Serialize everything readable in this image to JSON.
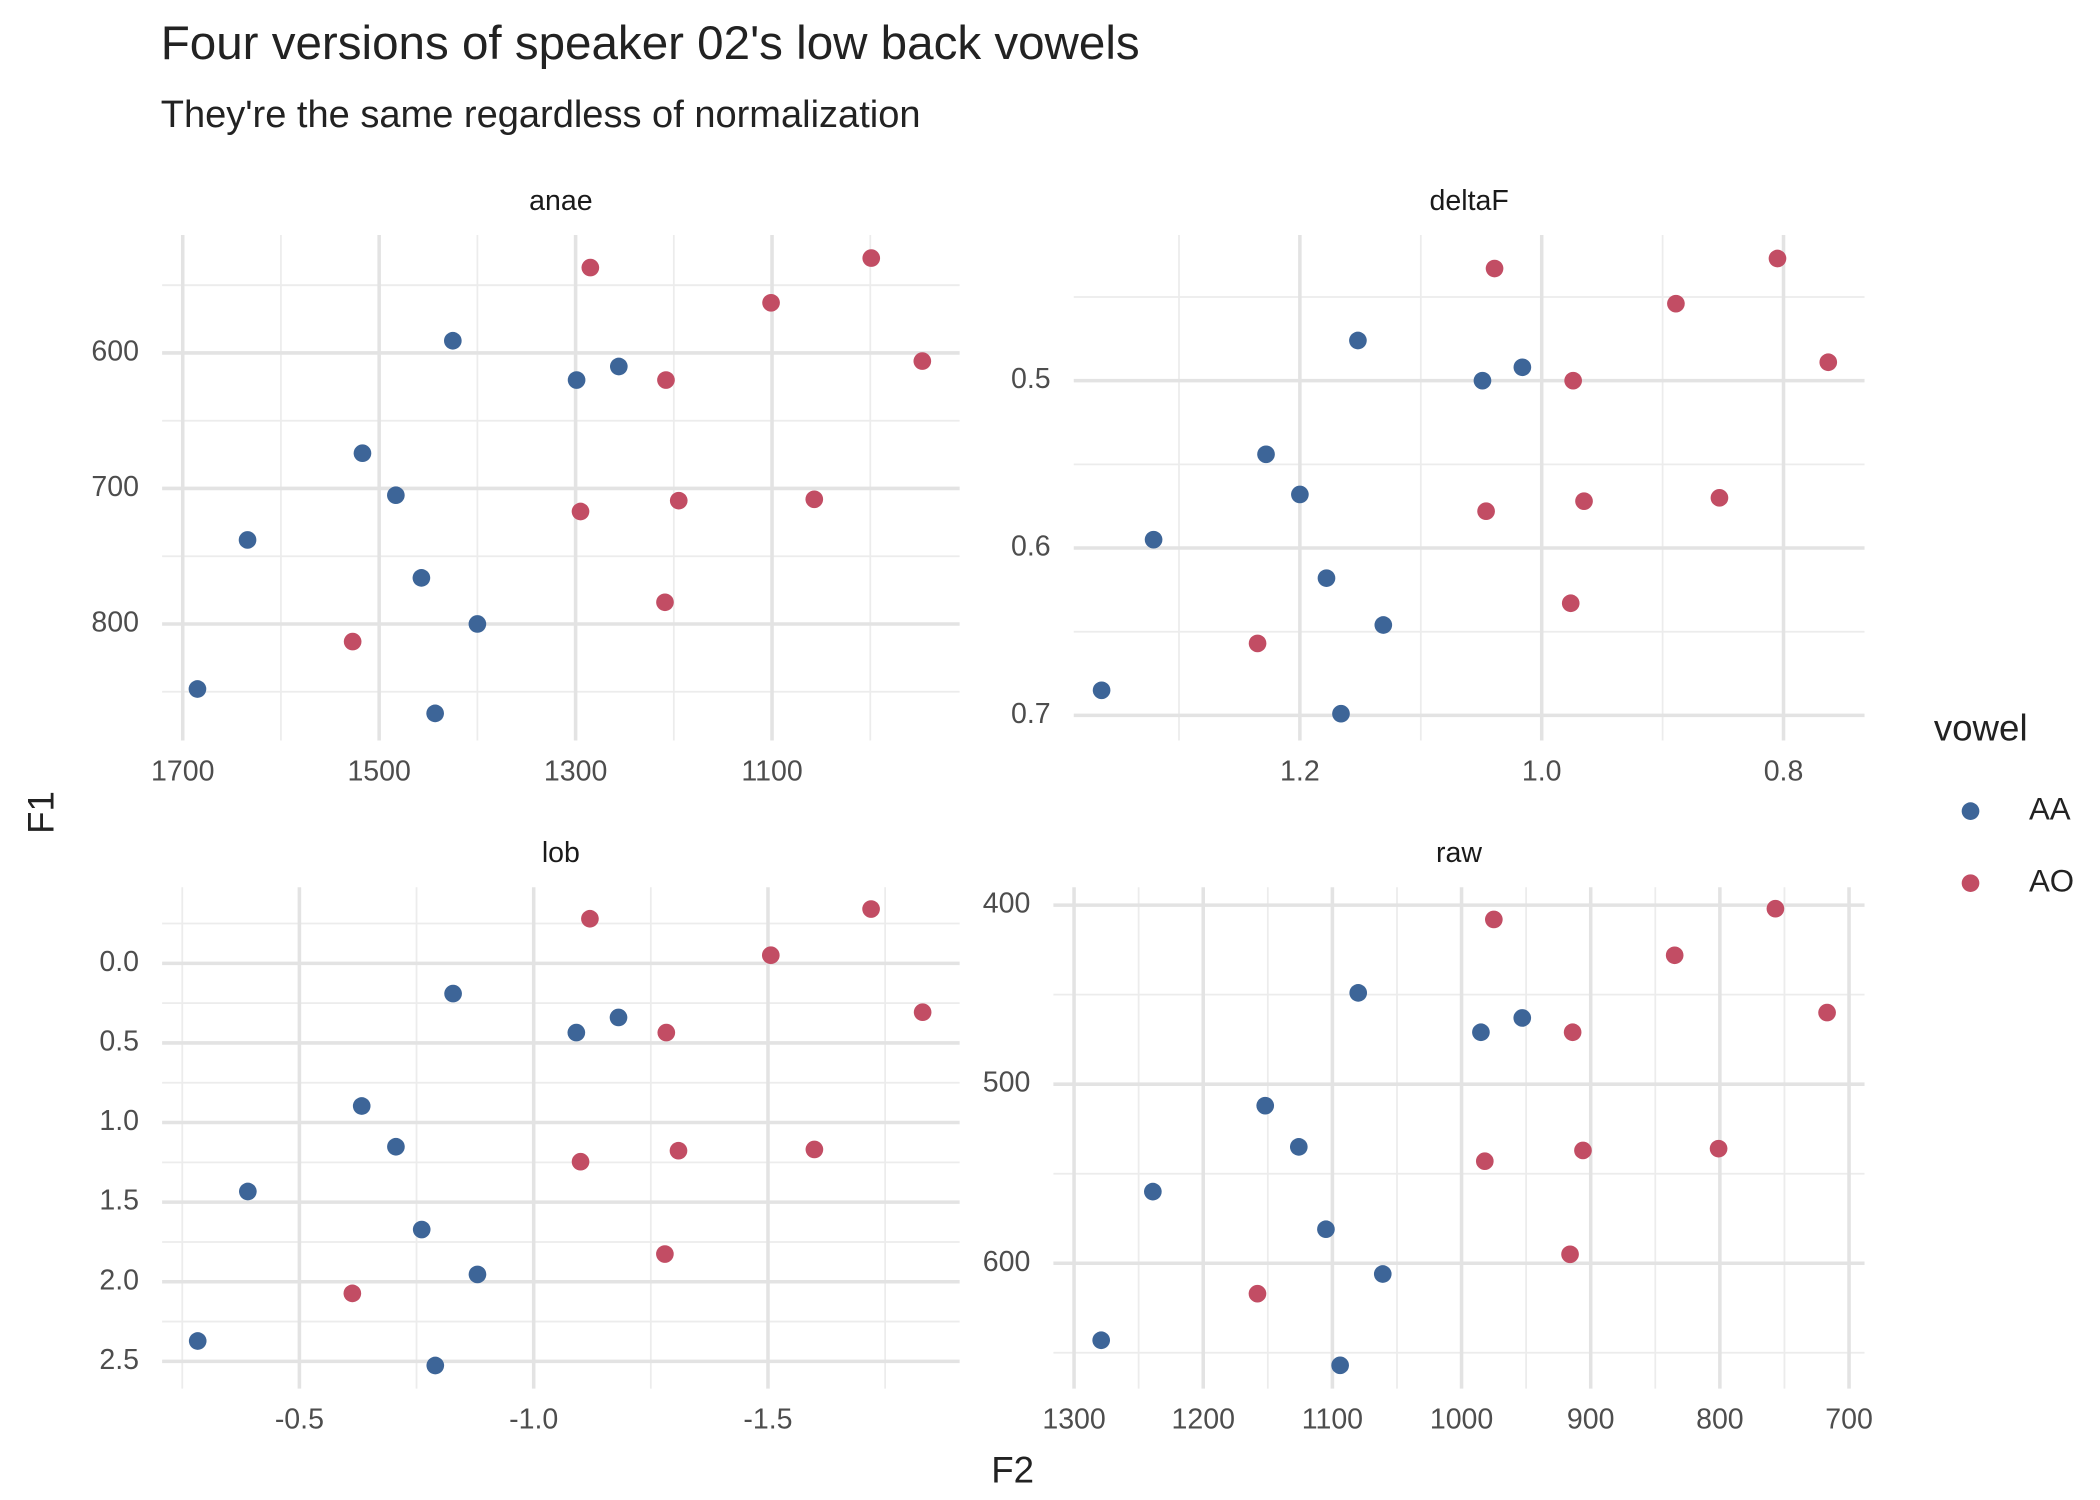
{
  "title": "Four versions of speaker 02's low back vowels",
  "subtitle": "They're the same regardless of normalization",
  "x_label": "F2",
  "y_label": "F1",
  "legend_title": "vowel",
  "chart_data": [
    {
      "type": "scatter",
      "title": "anae",
      "grid": true,
      "xlim": [
        1721,
        909
      ],
      "ylim": [
        886,
        513
      ],
      "xticks": [
        1700,
        1500,
        1300,
        1100
      ],
      "yticks": [
        600,
        700,
        800
      ],
      "series": [
        {
          "name": "AA",
          "color": "#3d6598",
          "x": [
            1425,
            1299,
            1256,
            1517,
            1483,
            1634,
            1457,
            1400,
            1685,
            1443
          ],
          "values": [
            591,
            620,
            610,
            674,
            705,
            738,
            766,
            800,
            848,
            866
          ]
        },
        {
          "name": "AO",
          "color": "#c24d64",
          "x": [
            1285,
            999,
            1101,
            947,
            1208,
            1295,
            1195,
            1057,
            1209,
            1527
          ],
          "values": [
            537,
            530,
            563,
            606,
            620,
            717,
            709,
            708,
            784,
            813
          ]
        }
      ]
    },
    {
      "type": "scatter",
      "title": "deltaF",
      "grid": true,
      "xlim": [
        1.387,
        0.733
      ],
      "ylim": [
        0.715,
        0.413
      ],
      "xticks": [
        1.2,
        {
          "value": 1,
          "label": "1.0"
        },
        0.8
      ],
      "yticks": [
        0.5,
        0.6,
        0.7
      ],
      "series": [
        {
          "color": "#3d6598",
          "x": [
            1.152,
            1.049,
            1.016,
            1.228,
            1.2,
            1.321,
            1.178,
            1.131,
            1.364,
            1.166
          ],
          "values": [
            0.476,
            0.5,
            0.492,
            0.544,
            0.568,
            0.595,
            0.618,
            0.646,
            0.685,
            0.699
          ]
        },
        {
          "color": "#c24d64",
          "x": [
            1.039,
            0.805,
            0.889,
            0.763,
            0.974,
            1.046,
            0.965,
            0.853,
            0.976,
            1.235
          ],
          "values": [
            0.433,
            0.427,
            0.454,
            0.489,
            0.5,
            0.578,
            0.572,
            0.57,
            0.633,
            0.657
          ]
        }
      ]
    },
    {
      "type": "scatter",
      "title": "lob",
      "grid": true,
      "xlim": [
        -0.207,
        -1.909
      ],
      "ylim": [
        2.671,
        -0.478
      ],
      "xticks": [
        -0.5,
        {
          "value": -1,
          "label": "-1.0"
        },
        -1.5
      ],
      "yticks": [
        {
          "value": 0,
          "label": "0.0"
        },
        0.5,
        {
          "value": 1,
          "label": "1.0"
        },
        1.5,
        {
          "value": 2,
          "label": "2.0"
        },
        2.5
      ],
      "series": [
        {
          "color": "#3d6598",
          "x": [
            -0.828,
            -1.091,
            -1.181,
            -0.633,
            -0.706,
            -0.39,
            -0.761,
            -0.88,
            -0.283,
            -0.79
          ],
          "values": [
            0.19,
            0.435,
            0.34,
            0.896,
            1.152,
            1.433,
            1.672,
            1.954,
            2.372,
            2.526
          ]
        },
        {
          "color": "#c24d64",
          "x": [
            -1.12,
            -1.72,
            -1.506,
            -1.83,
            -1.283,
            -1.1,
            -1.309,
            -1.599,
            -1.28,
            -0.613
          ],
          "values": [
            -0.28,
            -0.341,
            -0.051,
            0.307,
            0.435,
            1.246,
            1.177,
            1.169,
            1.826,
            2.073
          ]
        }
      ]
    },
    {
      "type": "scatter",
      "title": "raw",
      "grid": true,
      "xlim": [
        1316,
        688
      ],
      "ylim": [
        670,
        390
      ],
      "xticks": [
        1300,
        1200,
        1100,
        1000,
        900,
        800,
        700
      ],
      "yticks": [
        400,
        500,
        600
      ],
      "series": [
        {
          "color": "#3d6598",
          "x": [
            1080,
            985,
            953,
            1152,
            1126,
            1239,
            1105,
            1061,
            1279,
            1094
          ],
          "values": [
            449,
            471,
            463,
            512,
            535,
            560,
            581,
            606,
            643,
            657
          ]
        },
        {
          "color": "#c24d64",
          "x": [
            975,
            757,
            835,
            717,
            914,
            982,
            906,
            801,
            916,
            1158
          ],
          "values": [
            408,
            402,
            428,
            460,
            471,
            543,
            537,
            536,
            595,
            617
          ]
        }
      ]
    }
  ]
}
